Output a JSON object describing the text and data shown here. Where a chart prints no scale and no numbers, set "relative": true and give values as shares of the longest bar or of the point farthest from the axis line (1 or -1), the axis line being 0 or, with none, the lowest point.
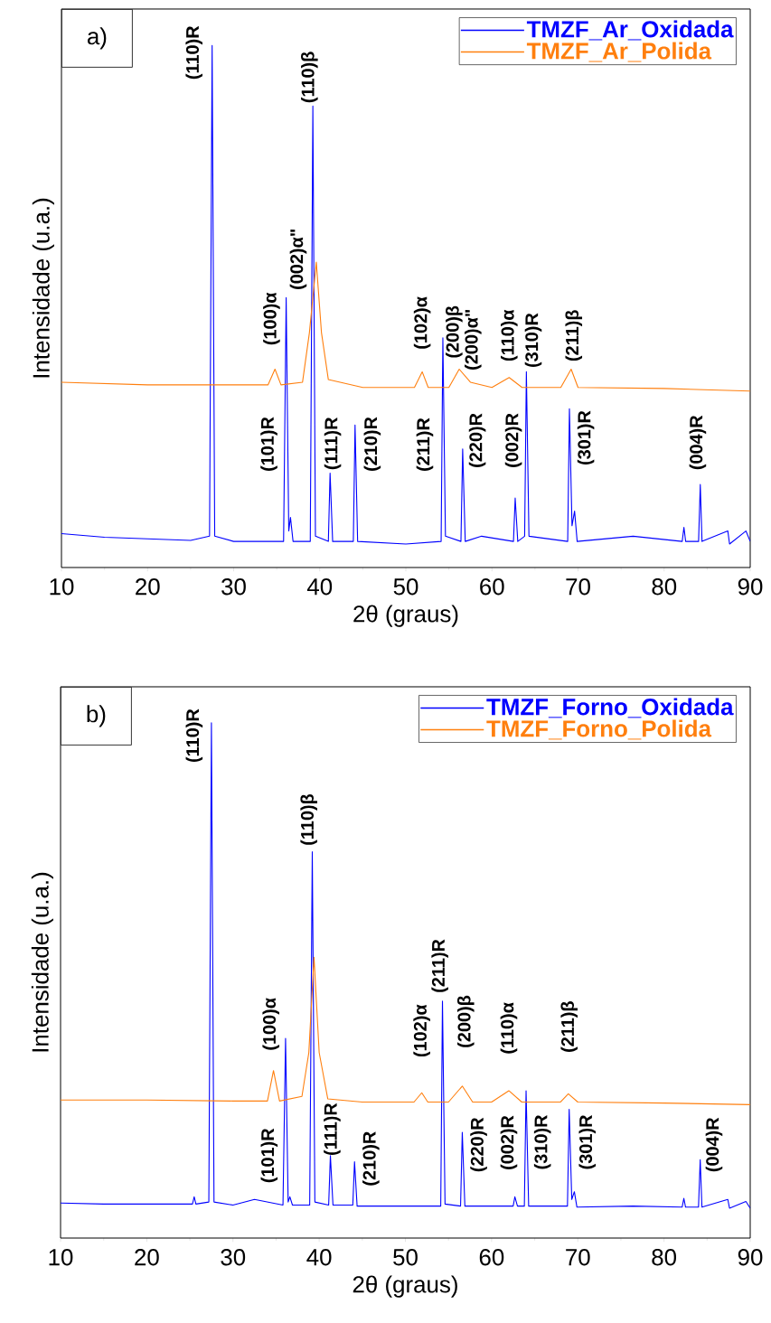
{
  "chart_data": [
    {
      "type": "line",
      "relative": true,
      "xlabel": "2θ (graus)",
      "ylabel": "Intensidade (u.a.)",
      "xlim": [
        10,
        90
      ],
      "xticks": [
        10,
        20,
        30,
        40,
        50,
        60,
        70,
        80,
        90
      ],
      "legend": "top right",
      "grid": false,
      "series": [
        {
          "name": "TMZF_Ar_Oxidada",
          "color": "#0000ff",
          "x": [
            10,
            15,
            20,
            25,
            27.2,
            27.5,
            27.8,
            30,
            35.8,
            36.1,
            36.4,
            36.6,
            36.9,
            38.9,
            39.2,
            39.5,
            41.0,
            41.2,
            41.5,
            43.9,
            44.1,
            44.4,
            50,
            54.1,
            54.3,
            54.6,
            56.4,
            56.6,
            56.9,
            58.8,
            62.5,
            62.7,
            63.0,
            63.8,
            64.0,
            64.3,
            68.8,
            69.0,
            69.3,
            69.6,
            69.9,
            76.4,
            82.1,
            82.3,
            82.5,
            84.0,
            84.2,
            84.4,
            87.4,
            87.6,
            89.5,
            90
          ],
          "values": [
            0.065,
            0.058,
            0.055,
            0.052,
            0.06,
            1.0,
            0.06,
            0.05,
            0.05,
            0.517,
            0.07,
            0.096,
            0.05,
            0.05,
            0.884,
            0.06,
            0.05,
            0.181,
            0.05,
            0.05,
            0.273,
            0.05,
            0.045,
            0.05,
            0.44,
            0.06,
            0.05,
            0.227,
            0.05,
            0.06,
            0.05,
            0.133,
            0.05,
            0.06,
            0.375,
            0.06,
            0.05,
            0.304,
            0.08,
            0.108,
            0.05,
            0.06,
            0.05,
            0.077,
            0.05,
            0.05,
            0.159,
            0.05,
            0.07,
            0.045,
            0.07,
            0.05
          ]
        },
        {
          "name": "TMZF_Ar_Polida",
          "color": "#ff7f0e",
          "x": [
            10,
            20,
            30,
            34,
            34.8,
            35.5,
            38,
            38.8,
            39.6,
            40.2,
            41,
            45,
            51,
            51.9,
            52.6,
            55,
            56.2,
            57.5,
            60,
            62,
            63.5,
            68,
            69.2,
            70,
            80,
            90
          ],
          "values": [
            0.355,
            0.35,
            0.35,
            0.35,
            0.38,
            0.35,
            0.355,
            0.45,
            0.585,
            0.45,
            0.36,
            0.345,
            0.345,
            0.375,
            0.345,
            0.345,
            0.38,
            0.355,
            0.345,
            0.364,
            0.345,
            0.345,
            0.38,
            0.345,
            0.343,
            0.338
          ]
        }
      ],
      "annotations": [
        "a)",
        "(110)R",
        "(110)β",
        "(100)α",
        "(002)α\"",
        "(102)α",
        "(200)β",
        "(200)α\"",
        "(110)α",
        "(310)R",
        "(211)β",
        "(101)R",
        "(111)R",
        "(210)R",
        "(211)R",
        "(220)R",
        "(002)R",
        "(301)R",
        "(004)R"
      ]
    },
    {
      "type": "line",
      "relative": true,
      "xlabel": "2θ (graus)",
      "ylabel": "Intensidade (u.a.)",
      "xlim": [
        10,
        90
      ],
      "xticks": [
        10,
        20,
        30,
        40,
        50,
        60,
        70,
        80,
        90
      ],
      "legend": "top right",
      "grid": false,
      "series": [
        {
          "name": "TMZF_Forno_Oxidada",
          "color": "#0000ff",
          "x": [
            10,
            15,
            20,
            25.3,
            25.5,
            25.7,
            27.2,
            27.5,
            27.8,
            30,
            32.5,
            35.8,
            36.1,
            36.4,
            36.6,
            36.9,
            38.9,
            39.2,
            39.5,
            41.1,
            41.3,
            41.6,
            43.9,
            44.1,
            44.4,
            50,
            54.1,
            54.3,
            54.6,
            56.4,
            56.6,
            56.9,
            62.5,
            62.7,
            63.0,
            63.8,
            64.0,
            64.3,
            68.8,
            69.0,
            69.3,
            69.6,
            69.9,
            76.4,
            82.1,
            82.3,
            82.5,
            84.0,
            84.2,
            84.4,
            87.4,
            87.6,
            89.5,
            90
          ],
          "values": [
            0.068,
            0.066,
            0.066,
            0.066,
            0.08,
            0.066,
            0.07,
            1.0,
            0.07,
            0.064,
            0.075,
            0.064,
            0.3875,
            0.07,
            0.08,
            0.064,
            0.064,
            0.75,
            0.07,
            0.064,
            0.16,
            0.064,
            0.064,
            0.148,
            0.062,
            0.062,
            0.062,
            0.46,
            0.066,
            0.062,
            0.205,
            0.062,
            0.062,
            0.08,
            0.062,
            0.062,
            0.286,
            0.062,
            0.062,
            0.25,
            0.075,
            0.09,
            0.06,
            0.062,
            0.06,
            0.077,
            0.06,
            0.06,
            0.152,
            0.06,
            0.075,
            0.058,
            0.071,
            0.058
          ]
        },
        {
          "name": "TMZF_Forno_Polida",
          "color": "#ff7f0e",
          "x": [
            10,
            20,
            30,
            34,
            34.7,
            35.4,
            38,
            38.8,
            39.4,
            40.0,
            41,
            45,
            51,
            51.9,
            52.6,
            55,
            56.6,
            57.8,
            60,
            62,
            63.5,
            68,
            68.9,
            70,
            80,
            90
          ],
          "values": [
            0.268,
            0.268,
            0.266,
            0.266,
            0.325,
            0.266,
            0.275,
            0.36,
            0.545,
            0.36,
            0.27,
            0.264,
            0.264,
            0.282,
            0.264,
            0.264,
            0.295,
            0.264,
            0.264,
            0.286,
            0.264,
            0.264,
            0.28,
            0.264,
            0.262,
            0.259
          ]
        }
      ],
      "annotations": [
        "b)",
        "(110)R",
        "(110)β",
        "(100)α",
        "(211)R",
        "(102)α",
        "(200)β",
        "(110)α",
        "(211)β",
        "(101)R",
        "(111)R",
        "(210)R",
        "(220)R",
        "(002)R",
        "(310)R",
        "(301)R",
        "(004)R"
      ]
    }
  ]
}
